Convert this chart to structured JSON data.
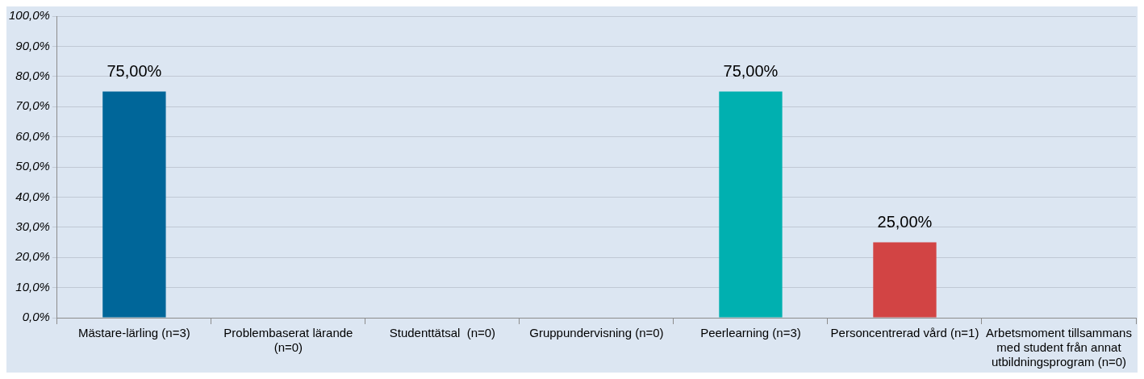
{
  "chart_data": {
    "type": "bar",
    "categories": [
      "Mästare-lärling (n=3)",
      "Problembaserat lärande (n=0)",
      "Studenttätsal  (n=0)",
      "Gruppundervisning (n=0)",
      "Peerlearning (n=3)",
      "Personcentrerad vård (n=1)",
      "Arbetsmoment tillsammans med student från annat utbildningsprogram (n=0)"
    ],
    "values": [
      75,
      0,
      0,
      0,
      75,
      25,
      0
    ],
    "colors": [
      "#006699",
      "#006699",
      "#006699",
      "#006699",
      "#00b0b0",
      "#d24444",
      "#006699"
    ],
    "value_labels": [
      "75,00%",
      null,
      null,
      null,
      "75,00%",
      "25,00%",
      null
    ],
    "ylim": [
      0,
      100
    ],
    "yticks": [
      {
        "value": 0,
        "label": "0,0%"
      },
      {
        "value": 10,
        "label": "10,0%"
      },
      {
        "value": 20,
        "label": "20,0%"
      },
      {
        "value": 30,
        "label": "30,0%"
      },
      {
        "value": 40,
        "label": "40,0%"
      },
      {
        "value": 50,
        "label": "50,0%"
      },
      {
        "value": 60,
        "label": "60,0%"
      },
      {
        "value": 70,
        "label": "70,0%"
      },
      {
        "value": 80,
        "label": "80,0%"
      },
      {
        "value": 90,
        "label": "90,0%"
      },
      {
        "value": 100,
        "label": "100,0%"
      }
    ],
    "grid": "y",
    "legend": false
  }
}
